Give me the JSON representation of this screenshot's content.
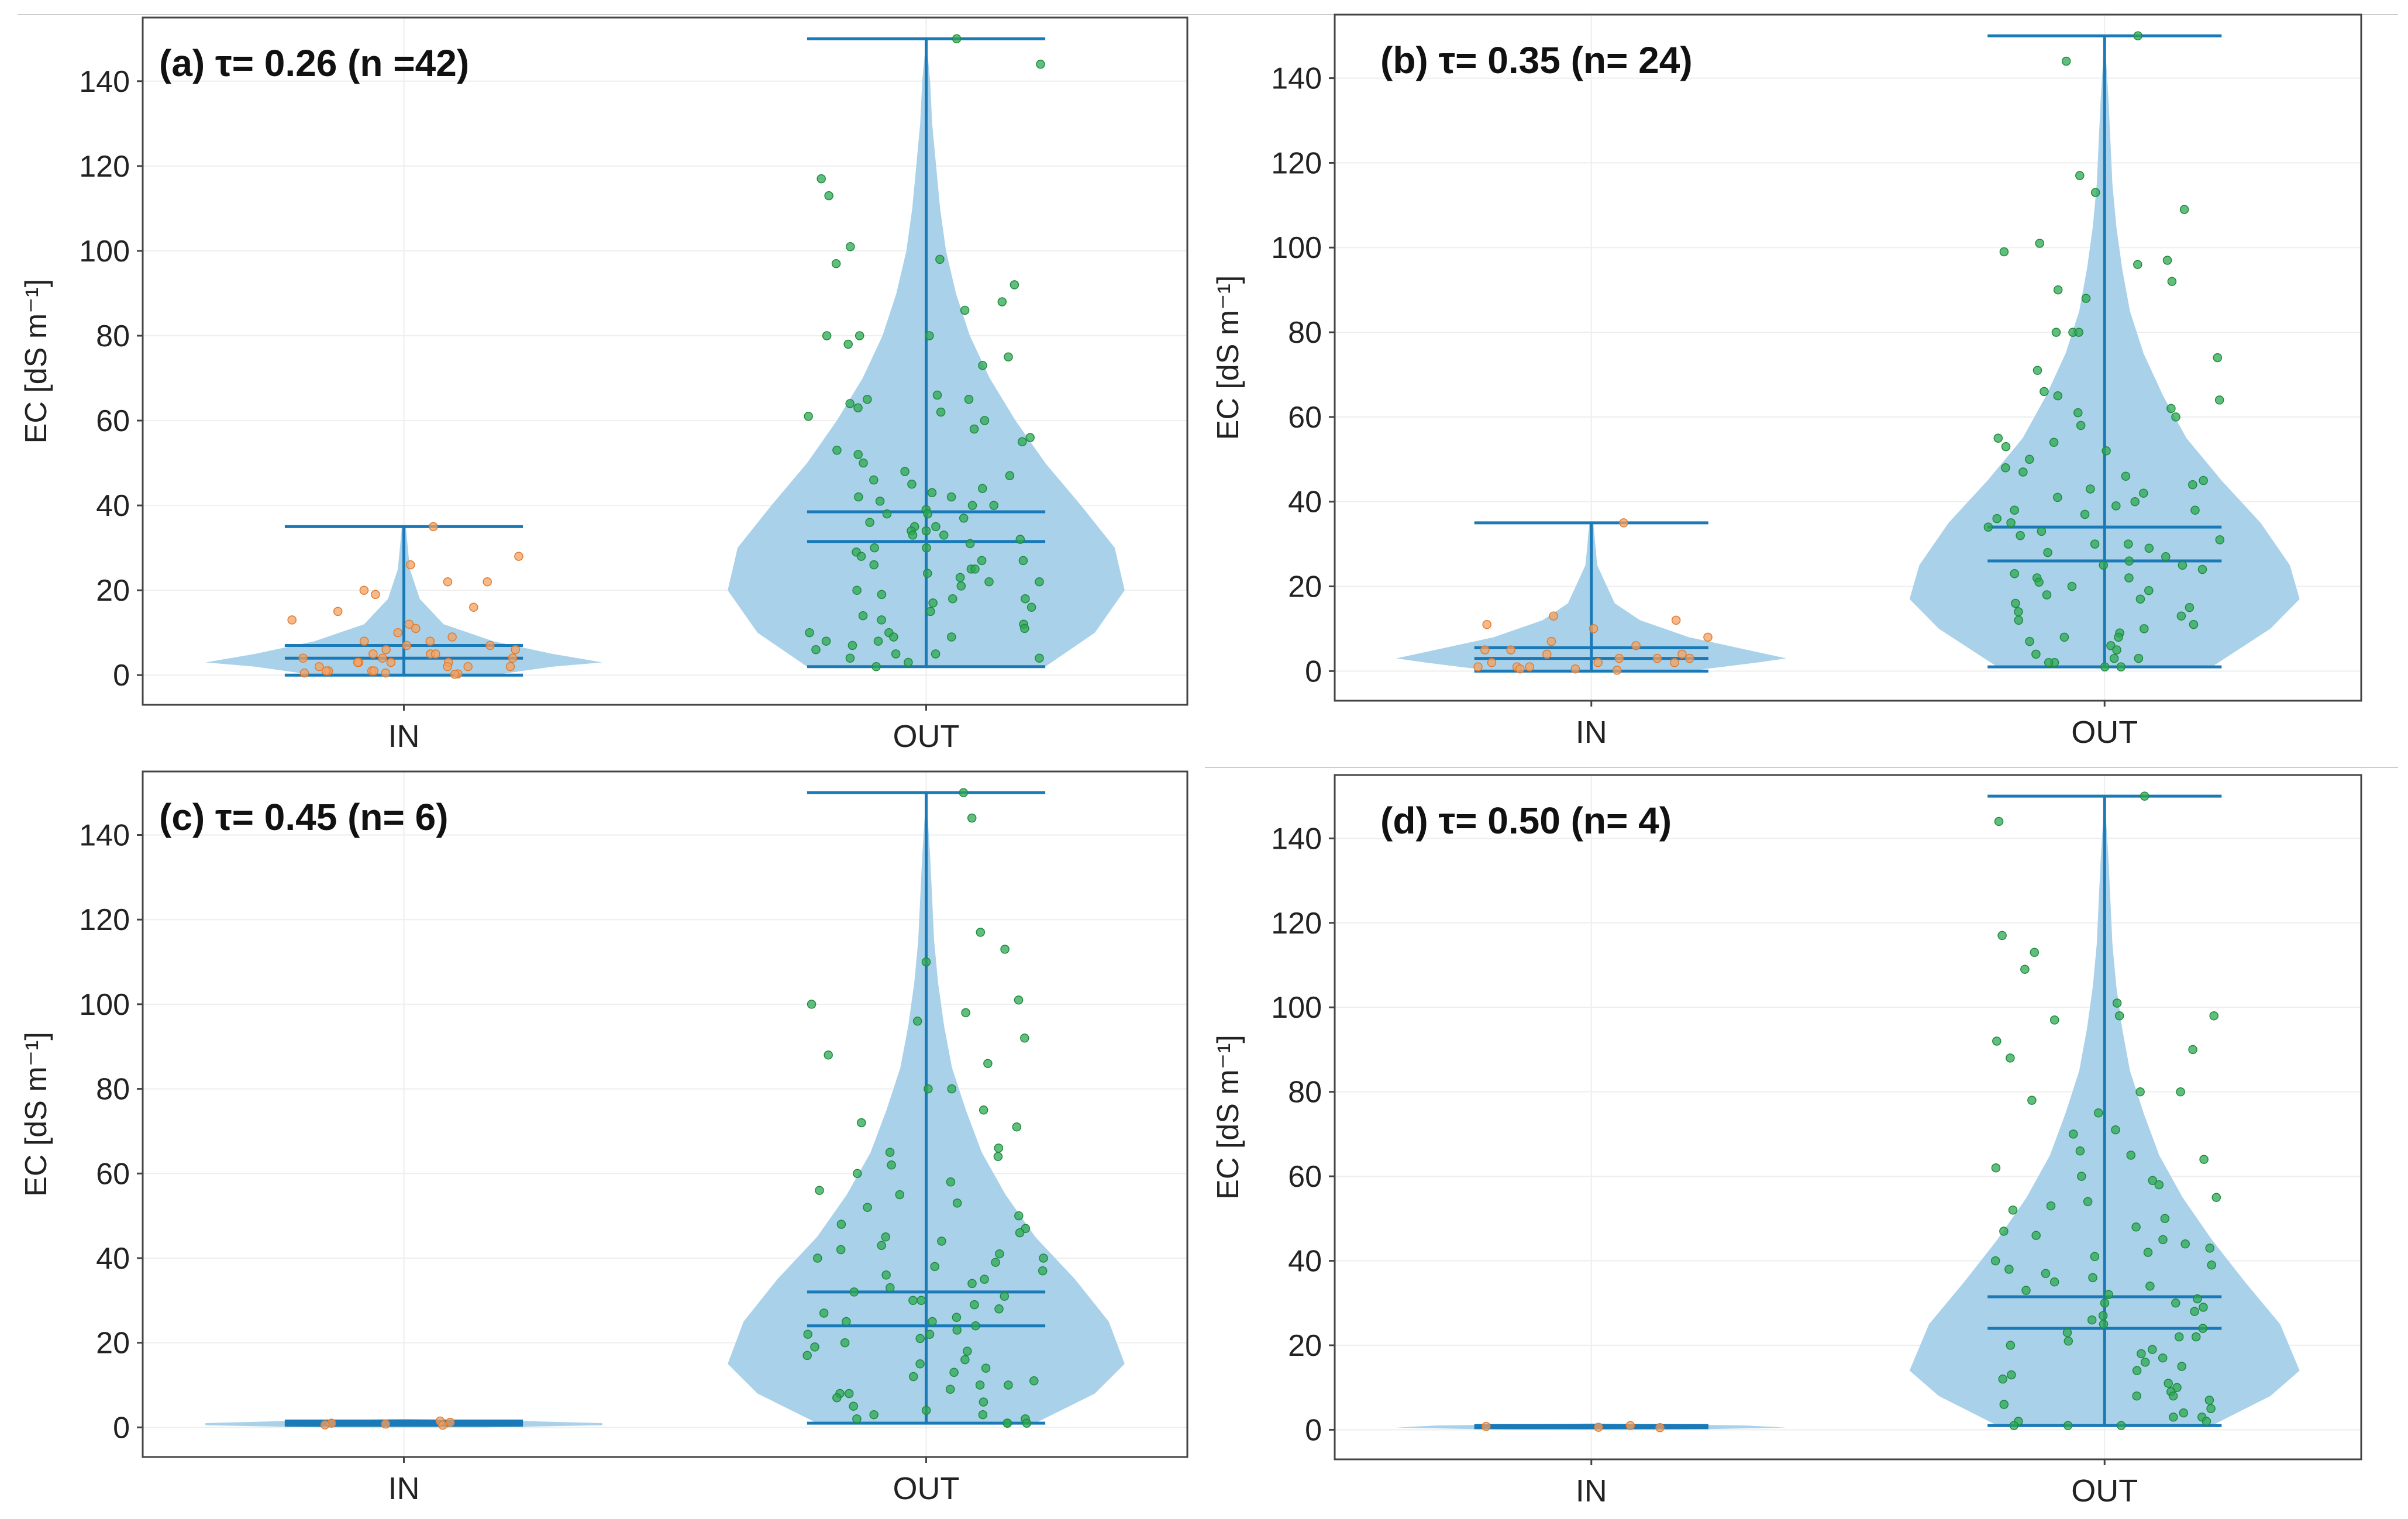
{
  "chart_data": [
    {
      "id": "a",
      "type": "violin",
      "title": "(a) τ= 0.26 (n =42)",
      "ylabel": "EC [dS m⁻¹]",
      "ylim": [
        -7,
        155
      ],
      "yticks": [
        0,
        20,
        40,
        60,
        80,
        100,
        120,
        140
      ],
      "categories": [
        "IN",
        "OUT"
      ],
      "groups": [
        {
          "name": "IN",
          "min": 0,
          "max": 35,
          "mean": 7,
          "median": 4,
          "density": [
            [
              0,
              0.45
            ],
            [
              2,
              0.75
            ],
            [
              3,
              1.0
            ],
            [
              5,
              0.75
            ],
            [
              8,
              0.45
            ],
            [
              12,
              0.2
            ],
            [
              18,
              0.08
            ],
            [
              25,
              0.03
            ],
            [
              30,
              0.02
            ],
            [
              35,
              0.01
            ]
          ],
          "points": [
            35,
            28,
            26,
            22,
            22,
            20,
            19,
            16,
            15,
            13,
            12,
            11,
            10,
            9,
            8,
            8,
            7,
            7,
            6,
            6,
            5,
            5,
            5,
            4,
            4,
            4,
            3,
            3,
            3,
            3,
            2,
            2,
            2,
            2,
            1,
            1,
            1,
            1,
            0.5,
            0.5,
            0.3,
            0.2
          ]
        },
        {
          "name": "OUT",
          "min": 2,
          "max": 150,
          "mean": 38.5,
          "median": 31.5,
          "density": [
            [
              2,
              0.6
            ],
            [
              10,
              0.85
            ],
            [
              20,
              1.0
            ],
            [
              30,
              0.95
            ],
            [
              40,
              0.78
            ],
            [
              50,
              0.6
            ],
            [
              60,
              0.45
            ],
            [
              70,
              0.32
            ],
            [
              80,
              0.22
            ],
            [
              90,
              0.15
            ],
            [
              100,
              0.1
            ],
            [
              110,
              0.07
            ],
            [
              120,
              0.05
            ],
            [
              130,
              0.03
            ],
            [
              140,
              0.02
            ],
            [
              150,
              0.0
            ]
          ],
          "points": [
            150,
            144,
            117,
            113,
            101,
            98,
            97,
            92,
            88,
            86,
            80,
            80,
            80,
            78,
            75,
            73,
            66,
            65,
            65,
            64,
            63,
            62,
            61,
            60,
            58,
            56,
            55,
            53,
            52,
            50,
            48,
            47,
            46,
            45,
            44,
            43,
            42,
            42,
            41,
            40,
            40,
            39,
            38,
            38,
            37,
            36,
            35,
            35,
            34,
            34,
            33,
            33,
            32,
            31,
            30,
            30,
            29,
            28,
            27,
            27,
            26,
            25,
            25,
            24,
            23,
            22,
            22,
            21,
            20,
            19,
            18,
            18,
            17,
            16,
            15,
            14,
            13,
            12,
            11,
            10,
            10,
            9,
            9,
            8,
            8,
            7,
            6,
            5,
            5,
            4,
            4,
            3,
            2
          ]
        }
      ]
    },
    {
      "id": "b",
      "type": "violin",
      "title": "(b) τ= 0.35 (n= 24)",
      "ylabel": "EC [dS m⁻¹]",
      "ylim": [
        -7,
        155
      ],
      "yticks": [
        0,
        20,
        40,
        60,
        80,
        100,
        120,
        140
      ],
      "categories": [
        "IN",
        "OUT"
      ],
      "groups": [
        {
          "name": "IN",
          "min": 0,
          "max": 35,
          "mean": 5.5,
          "median": 3,
          "density": [
            [
              0,
              0.5
            ],
            [
              2,
              0.85
            ],
            [
              3,
              1.0
            ],
            [
              5,
              0.8
            ],
            [
              8,
              0.5
            ],
            [
              12,
              0.25
            ],
            [
              16,
              0.12
            ],
            [
              20,
              0.08
            ],
            [
              25,
              0.03
            ],
            [
              30,
              0.02
            ],
            [
              35,
              0.01
            ]
          ],
          "points": [
            35,
            13,
            12,
            11,
            10,
            8,
            7,
            6,
            5,
            5,
            4,
            4,
            3,
            3,
            3,
            2,
            2,
            2,
            1,
            1,
            1,
            0.5,
            0.5,
            0.2
          ]
        },
        {
          "name": "OUT",
          "min": 1,
          "max": 150,
          "mean": 34,
          "median": 26,
          "density": [
            [
              1,
              0.55
            ],
            [
              10,
              0.85
            ],
            [
              17,
              1.0
            ],
            [
              25,
              0.95
            ],
            [
              35,
              0.8
            ],
            [
              45,
              0.6
            ],
            [
              55,
              0.42
            ],
            [
              65,
              0.3
            ],
            [
              75,
              0.2
            ],
            [
              85,
              0.13
            ],
            [
              95,
              0.09
            ],
            [
              105,
              0.06
            ],
            [
              115,
              0.04
            ],
            [
              125,
              0.03
            ],
            [
              135,
              0.02
            ],
            [
              150,
              0.0
            ]
          ],
          "points": [
            150,
            144,
            117,
            113,
            109,
            101,
            99,
            97,
            96,
            92,
            90,
            88,
            80,
            80,
            80,
            74,
            71,
            66,
            65,
            64,
            62,
            61,
            60,
            58,
            55,
            54,
            53,
            52,
            50,
            48,
            47,
            46,
            45,
            44,
            43,
            42,
            41,
            40,
            39,
            38,
            38,
            37,
            36,
            35,
            34,
            33,
            32,
            31,
            30,
            30,
            29,
            28,
            27,
            26,
            25,
            25,
            24,
            23,
            22,
            22,
            21,
            20,
            19,
            18,
            17,
            16,
            15,
            14,
            13,
            12,
            11,
            10,
            9,
            8,
            8,
            7,
            6,
            5,
            4,
            3,
            3,
            2,
            2,
            1,
            1
          ]
        }
      ]
    },
    {
      "id": "c",
      "type": "violin",
      "title": "(c) τ=  0.45 (n= 6)",
      "ylabel": "EC [dS m⁻¹]",
      "ylim": [
        -7,
        155
      ],
      "yticks": [
        0,
        20,
        40,
        60,
        80,
        100,
        120,
        140
      ],
      "categories": [
        "IN",
        "OUT"
      ],
      "groups": [
        {
          "name": "IN",
          "min": 0.5,
          "max": 1.5,
          "mean": 1,
          "median": 0.8,
          "density": [
            [
              0,
              0.4
            ],
            [
              0.5,
              1.0
            ],
            [
              1,
              1.0
            ],
            [
              1.5,
              0.6
            ],
            [
              2,
              0.0
            ]
          ],
          "points": [
            1.5,
            1.2,
            1,
            0.8,
            0.6,
            0.5
          ]
        },
        {
          "name": "OUT",
          "min": 1,
          "max": 150,
          "mean": 32,
          "median": 24,
          "density": [
            [
              1,
              0.55
            ],
            [
              8,
              0.85
            ],
            [
              15,
              1.0
            ],
            [
              25,
              0.92
            ],
            [
              35,
              0.75
            ],
            [
              45,
              0.55
            ],
            [
              55,
              0.4
            ],
            [
              65,
              0.28
            ],
            [
              75,
              0.2
            ],
            [
              85,
              0.13
            ],
            [
              95,
              0.09
            ],
            [
              105,
              0.06
            ],
            [
              115,
              0.04
            ],
            [
              125,
              0.03
            ],
            [
              135,
              0.02
            ],
            [
              150,
              0.0
            ]
          ],
          "points": [
            150,
            144,
            117,
            113,
            110,
            101,
            100,
            98,
            96,
            92,
            88,
            86,
            80,
            80,
            75,
            72,
            71,
            66,
            65,
            64,
            62,
            60,
            58,
            56,
            55,
            53,
            52,
            50,
            48,
            47,
            46,
            45,
            44,
            43,
            42,
            41,
            40,
            40,
            39,
            38,
            37,
            36,
            35,
            34,
            33,
            32,
            31,
            30,
            30,
            29,
            28,
            27,
            26,
            25,
            25,
            24,
            23,
            22,
            22,
            21,
            20,
            19,
            18,
            17,
            16,
            15,
            14,
            13,
            12,
            11,
            10,
            10,
            9,
            8,
            8,
            7,
            6,
            5,
            4,
            3,
            3,
            2,
            2,
            1,
            1,
            1
          ]
        }
      ]
    },
    {
      "id": "d",
      "type": "violin",
      "title": "(d) τ= 0.50 (n= 4)",
      "ylabel": "EC [dS m⁻¹]",
      "ylim": [
        -7,
        155
      ],
      "yticks": [
        0,
        20,
        40,
        60,
        80,
        100,
        120,
        140
      ],
      "categories": [
        "IN",
        "OUT"
      ],
      "groups": [
        {
          "name": "IN",
          "min": 0.5,
          "max": 1,
          "mean": 0.8,
          "median": 0.7,
          "density": [
            [
              0,
              0.4
            ],
            [
              0.5,
              1.0
            ],
            [
              1,
              0.8
            ],
            [
              1.5,
              0.0
            ]
          ],
          "points": [
            1,
            0.8,
            0.6,
            0.5
          ]
        },
        {
          "name": "OUT",
          "min": 1,
          "max": 150,
          "mean": 31.5,
          "median": 24,
          "density": [
            [
              1,
              0.55
            ],
            [
              8,
              0.85
            ],
            [
              14,
              1.0
            ],
            [
              25,
              0.9
            ],
            [
              35,
              0.72
            ],
            [
              45,
              0.55
            ],
            [
              55,
              0.4
            ],
            [
              65,
              0.28
            ],
            [
              75,
              0.2
            ],
            [
              85,
              0.13
            ],
            [
              95,
              0.09
            ],
            [
              105,
              0.06
            ],
            [
              115,
              0.04
            ],
            [
              125,
              0.03
            ],
            [
              135,
              0.02
            ],
            [
              150,
              0.0
            ]
          ],
          "points": [
            150,
            144,
            117,
            113,
            109,
            101,
            98,
            98,
            97,
            92,
            90,
            88,
            80,
            80,
            78,
            75,
            71,
            70,
            66,
            65,
            64,
            62,
            60,
            59,
            58,
            55,
            54,
            53,
            52,
            50,
            48,
            47,
            46,
            45,
            44,
            43,
            42,
            41,
            40,
            39,
            38,
            37,
            36,
            35,
            34,
            33,
            32,
            31,
            30,
            30,
            29,
            28,
            27,
            26,
            25,
            24,
            23,
            22,
            22,
            21,
            20,
            19,
            18,
            17,
            16,
            15,
            14,
            13,
            12,
            11,
            10,
            9,
            8,
            8,
            7,
            6,
            5,
            4,
            3,
            3,
            2,
            2,
            1,
            1,
            1
          ]
        }
      ]
    }
  ],
  "colors": {
    "violin_fill": "#a9d1e9",
    "stat_line": "#1a7ab8",
    "in_points": "#f4a261",
    "out_points": "#2ca850",
    "out_points_edge": "#1e8a3e"
  }
}
